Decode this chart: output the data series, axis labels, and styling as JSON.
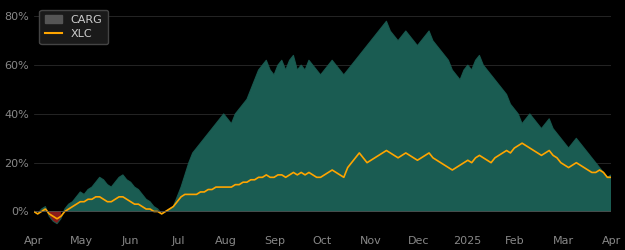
{
  "background_color": "#000000",
  "carg_color": "#1a5c52",
  "carg_negative_color": "#8b1a1a",
  "xlc_color": "#FFA500",
  "legend_bg": "#1a1a1a",
  "legend_text": "#cccccc",
  "tick_color": "#888888",
  "spine_color": "#444444",
  "ylim": [
    -0.08,
    0.85
  ],
  "yticks": [
    0.0,
    0.2,
    0.4,
    0.6,
    0.8
  ],
  "ytick_labels": [
    "0%",
    "20%",
    "40%",
    "60%",
    "80%"
  ],
  "xtick_labels": [
    "Apr",
    "May",
    "Jun",
    "Jul",
    "Aug",
    "Sep",
    "Oct",
    "Nov",
    "Dec",
    "2025",
    "Feb",
    "Mar",
    "Apr"
  ],
  "title": "",
  "carg_data": [
    0.0,
    -0.01,
    0.01,
    0.02,
    -0.02,
    -0.04,
    -0.05,
    -0.03,
    0.01,
    0.03,
    0.04,
    0.06,
    0.08,
    0.07,
    0.09,
    0.1,
    0.12,
    0.14,
    0.13,
    0.11,
    0.1,
    0.12,
    0.14,
    0.15,
    0.13,
    0.12,
    0.1,
    0.09,
    0.07,
    0.05,
    0.04,
    0.02,
    0.01,
    -0.01,
    0.0,
    0.01,
    0.02,
    0.06,
    0.1,
    0.15,
    0.2,
    0.24,
    0.26,
    0.28,
    0.3,
    0.32,
    0.34,
    0.36,
    0.38,
    0.4,
    0.38,
    0.36,
    0.4,
    0.42,
    0.44,
    0.46,
    0.5,
    0.54,
    0.58,
    0.6,
    0.62,
    0.58,
    0.56,
    0.6,
    0.62,
    0.58,
    0.62,
    0.64,
    0.58,
    0.6,
    0.58,
    0.62,
    0.6,
    0.58,
    0.56,
    0.58,
    0.6,
    0.62,
    0.6,
    0.58,
    0.56,
    0.58,
    0.6,
    0.62,
    0.64,
    0.66,
    0.68,
    0.7,
    0.72,
    0.74,
    0.76,
    0.78,
    0.74,
    0.72,
    0.7,
    0.72,
    0.74,
    0.72,
    0.7,
    0.68,
    0.7,
    0.72,
    0.74,
    0.7,
    0.68,
    0.66,
    0.64,
    0.62,
    0.58,
    0.56,
    0.54,
    0.58,
    0.6,
    0.58,
    0.62,
    0.64,
    0.6,
    0.58,
    0.56,
    0.54,
    0.52,
    0.5,
    0.48,
    0.44,
    0.42,
    0.4,
    0.36,
    0.38,
    0.4,
    0.38,
    0.36,
    0.34,
    0.36,
    0.38,
    0.34,
    0.32,
    0.3,
    0.28,
    0.26,
    0.28,
    0.3,
    0.28,
    0.26,
    0.24,
    0.22,
    0.2,
    0.18,
    0.16,
    0.14,
    0.15
  ],
  "xlc_data": [
    0.0,
    -0.01,
    0.0,
    0.01,
    -0.01,
    -0.02,
    -0.03,
    -0.02,
    0.0,
    0.01,
    0.02,
    0.03,
    0.04,
    0.04,
    0.05,
    0.05,
    0.06,
    0.06,
    0.05,
    0.04,
    0.04,
    0.05,
    0.06,
    0.06,
    0.05,
    0.04,
    0.03,
    0.03,
    0.02,
    0.01,
    0.01,
    0.0,
    0.0,
    -0.01,
    0.0,
    0.01,
    0.02,
    0.04,
    0.06,
    0.07,
    0.07,
    0.07,
    0.07,
    0.08,
    0.08,
    0.09,
    0.09,
    0.1,
    0.1,
    0.1,
    0.1,
    0.1,
    0.11,
    0.11,
    0.12,
    0.12,
    0.13,
    0.13,
    0.14,
    0.14,
    0.15,
    0.14,
    0.14,
    0.15,
    0.15,
    0.14,
    0.15,
    0.16,
    0.15,
    0.16,
    0.15,
    0.16,
    0.15,
    0.14,
    0.14,
    0.15,
    0.16,
    0.17,
    0.16,
    0.15,
    0.14,
    0.18,
    0.2,
    0.22,
    0.24,
    0.22,
    0.2,
    0.21,
    0.22,
    0.23,
    0.24,
    0.25,
    0.24,
    0.23,
    0.22,
    0.23,
    0.24,
    0.23,
    0.22,
    0.21,
    0.22,
    0.23,
    0.24,
    0.22,
    0.21,
    0.2,
    0.19,
    0.18,
    0.17,
    0.18,
    0.19,
    0.2,
    0.21,
    0.2,
    0.22,
    0.23,
    0.22,
    0.21,
    0.2,
    0.22,
    0.23,
    0.24,
    0.25,
    0.24,
    0.26,
    0.27,
    0.28,
    0.27,
    0.26,
    0.25,
    0.24,
    0.23,
    0.24,
    0.25,
    0.23,
    0.22,
    0.2,
    0.19,
    0.18,
    0.19,
    0.2,
    0.19,
    0.18,
    0.17,
    0.16,
    0.16,
    0.17,
    0.16,
    0.14,
    0.14
  ]
}
